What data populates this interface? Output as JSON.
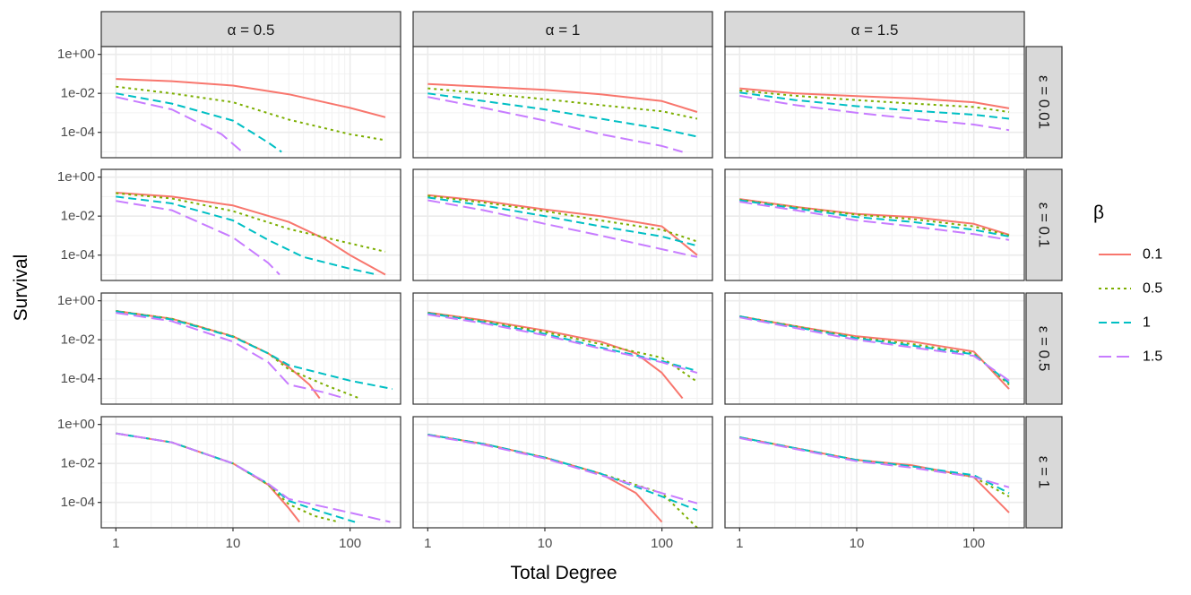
{
  "chart_data": {
    "type": "line",
    "xlabel": "Total Degree",
    "ylabel": "Survival",
    "x_scale": "log10",
    "y_scale": "log10",
    "xlim": [
      0.75,
      270
    ],
    "ylim": [
      5e-06,
      2.5
    ],
    "x_ticks": [
      {
        "value": 1,
        "label": "1"
      },
      {
        "value": 10,
        "label": "10"
      },
      {
        "value": 100,
        "label": "100"
      }
    ],
    "y_ticks": [
      {
        "value": 1,
        "label": "1e+00"
      },
      {
        "value": 0.01,
        "label": "1e-02"
      },
      {
        "value": 0.0001,
        "label": "1e-04"
      }
    ],
    "column_strips": [
      "α = 0.5",
      "α = 1",
      "α = 1.5"
    ],
    "row_strips": [
      "ε = 0.01",
      "ε = 0.1",
      "ε = 0.5",
      "ε = 1"
    ],
    "legend": {
      "title": "β",
      "position": "right",
      "entries": [
        {
          "label": "0.1",
          "color": "#F8766D",
          "dash": "solid"
        },
        {
          "label": "0.5",
          "color": "#7CAE00",
          "dash": "dotted"
        },
        {
          "label": "1",
          "color": "#00BFC4",
          "dash": "dashed"
        },
        {
          "label": "1.5",
          "color": "#C77CFF",
          "dash": "longdash"
        }
      ]
    },
    "panels": [
      {
        "row": 0,
        "col": 0,
        "series": [
          {
            "beta": "0.1",
            "x": [
              1,
              3,
              10,
              30,
              100,
              200
            ],
            "y": [
              0.055,
              0.042,
              0.025,
              0.009,
              0.0018,
              0.0006
            ]
          },
          {
            "beta": "0.5",
            "x": [
              1,
              3,
              10,
              30,
              100,
              200
            ],
            "y": [
              0.022,
              0.01,
              0.0035,
              0.00045,
              8e-05,
              4e-05
            ]
          },
          {
            "beta": "1",
            "x": [
              1,
              3,
              10,
              20,
              26
            ],
            "y": [
              0.01,
              0.003,
              0.0004,
              3e-05,
              1e-05
            ]
          },
          {
            "beta": "1.5",
            "x": [
              1,
              3,
              8,
              12
            ],
            "y": [
              0.0065,
              0.0015,
              8e-05,
              1e-05
            ]
          }
        ]
      },
      {
        "row": 0,
        "col": 1,
        "series": [
          {
            "beta": "0.1",
            "x": [
              1,
              3,
              10,
              30,
              100,
              200
            ],
            "y": [
              0.03,
              0.022,
              0.015,
              0.009,
              0.004,
              0.0011
            ]
          },
          {
            "beta": "0.5",
            "x": [
              1,
              3,
              10,
              30,
              100,
              200
            ],
            "y": [
              0.018,
              0.01,
              0.005,
              0.0025,
              0.0012,
              0.0005
            ]
          },
          {
            "beta": "1",
            "x": [
              1,
              3,
              10,
              30,
              100,
              200
            ],
            "y": [
              0.01,
              0.004,
              0.0015,
              0.0005,
              0.00015,
              6e-05
            ]
          },
          {
            "beta": "1.5",
            "x": [
              1,
              3,
              10,
              30,
              100,
              150
            ],
            "y": [
              0.0065,
              0.0018,
              0.0004,
              8e-05,
              2e-05,
              1e-05
            ]
          }
        ]
      },
      {
        "row": 0,
        "col": 2,
        "series": [
          {
            "beta": "0.1",
            "x": [
              1,
              3,
              10,
              30,
              100,
              200
            ],
            "y": [
              0.018,
              0.01,
              0.0072,
              0.0055,
              0.0035,
              0.0017
            ]
          },
          {
            "beta": "0.5",
            "x": [
              1,
              3,
              10,
              30,
              100,
              200
            ],
            "y": [
              0.014,
              0.0075,
              0.0045,
              0.003,
              0.002,
              0.0011
            ]
          },
          {
            "beta": "1",
            "x": [
              1,
              3,
              10,
              30,
              100,
              200
            ],
            "y": [
              0.011,
              0.0045,
              0.0022,
              0.0013,
              0.0008,
              0.0005
            ]
          },
          {
            "beta": "1.5",
            "x": [
              1,
              3,
              10,
              30,
              100,
              200
            ],
            "y": [
              0.0075,
              0.0025,
              0.001,
              0.0005,
              0.00025,
              0.00013
            ]
          }
        ]
      },
      {
        "row": 1,
        "col": 0,
        "series": [
          {
            "beta": "0.1",
            "x": [
              1,
              3,
              10,
              30,
              60,
              100,
              200
            ],
            "y": [
              0.16,
              0.1,
              0.035,
              0.005,
              0.0007,
              0.0001,
              1e-05
            ]
          },
          {
            "beta": "0.5",
            "x": [
              1,
              3,
              10,
              30,
              100,
              200
            ],
            "y": [
              0.15,
              0.08,
              0.018,
              0.0022,
              0.0004,
              0.00015
            ]
          },
          {
            "beta": "1",
            "x": [
              1,
              3,
              10,
              20,
              40,
              100,
              170
            ],
            "y": [
              0.1,
              0.045,
              0.006,
              0.0006,
              8e-05,
              2e-05,
              1e-05
            ]
          },
          {
            "beta": "1.5",
            "x": [
              1,
              3,
              10,
              20,
              25
            ],
            "y": [
              0.06,
              0.02,
              0.0008,
              4e-05,
              1e-05
            ]
          }
        ]
      },
      {
        "row": 1,
        "col": 1,
        "series": [
          {
            "beta": "0.1",
            "x": [
              1,
              3,
              10,
              30,
              100,
              200
            ],
            "y": [
              0.12,
              0.06,
              0.022,
              0.01,
              0.003,
              0.0001
            ]
          },
          {
            "beta": "0.5",
            "x": [
              1,
              3,
              10,
              30,
              100,
              200
            ],
            "y": [
              0.11,
              0.05,
              0.018,
              0.006,
              0.002,
              0.0005
            ]
          },
          {
            "beta": "1",
            "x": [
              1,
              3,
              10,
              30,
              100,
              200
            ],
            "y": [
              0.09,
              0.035,
              0.01,
              0.003,
              0.0009,
              0.0003
            ]
          },
          {
            "beta": "1.5",
            "x": [
              1,
              3,
              10,
              30,
              100,
              200
            ],
            "y": [
              0.065,
              0.02,
              0.004,
              0.001,
              0.0002,
              8e-05
            ]
          }
        ]
      },
      {
        "row": 1,
        "col": 2,
        "series": [
          {
            "beta": "0.1",
            "x": [
              1,
              3,
              10,
              30,
              100,
              200
            ],
            "y": [
              0.075,
              0.03,
              0.013,
              0.009,
              0.004,
              0.0011
            ]
          },
          {
            "beta": "0.5",
            "x": [
              1,
              3,
              10,
              30,
              100,
              200
            ],
            "y": [
              0.07,
              0.028,
              0.012,
              0.007,
              0.003,
              0.001
            ]
          },
          {
            "beta": "1",
            "x": [
              1,
              3,
              10,
              30,
              100,
              200
            ],
            "y": [
              0.065,
              0.025,
              0.009,
              0.005,
              0.002,
              0.0009
            ]
          },
          {
            "beta": "1.5",
            "x": [
              1,
              3,
              10,
              30,
              100,
              200
            ],
            "y": [
              0.055,
              0.02,
              0.006,
              0.003,
              0.0012,
              0.0006
            ]
          }
        ]
      },
      {
        "row": 2,
        "col": 0,
        "series": [
          {
            "beta": "0.1",
            "x": [
              1,
              3,
              10,
              20,
              30,
              45,
              55
            ],
            "y": [
              0.3,
              0.12,
              0.015,
              0.002,
              0.0004,
              5e-05,
              1e-05
            ]
          },
          {
            "beta": "0.5",
            "x": [
              1,
              3,
              10,
              20,
              30,
              60,
              120
            ],
            "y": [
              0.3,
              0.12,
              0.015,
              0.002,
              0.0003,
              5e-05,
              1e-05
            ]
          },
          {
            "beta": "1",
            "x": [
              1,
              3,
              10,
              20,
              30,
              100,
              230
            ],
            "y": [
              0.29,
              0.11,
              0.014,
              0.002,
              0.0005,
              8e-05,
              3e-05
            ]
          },
          {
            "beta": "1.5",
            "x": [
              1,
              3,
              10,
              20,
              30,
              60,
              90
            ],
            "y": [
              0.24,
              0.09,
              0.008,
              0.0007,
              5e-05,
              2e-05,
              1e-05
            ]
          }
        ]
      },
      {
        "row": 2,
        "col": 1,
        "series": [
          {
            "beta": "0.1",
            "x": [
              1,
              3,
              10,
              30,
              60,
              100,
              150
            ],
            "y": [
              0.25,
              0.1,
              0.03,
              0.008,
              0.002,
              0.0002,
              1e-05
            ]
          },
          {
            "beta": "0.5",
            "x": [
              1,
              3,
              10,
              30,
              100,
              200
            ],
            "y": [
              0.24,
              0.09,
              0.025,
              0.006,
              0.0012,
              7e-05
            ]
          },
          {
            "beta": "1",
            "x": [
              1,
              3,
              10,
              30,
              100,
              200
            ],
            "y": [
              0.23,
              0.08,
              0.02,
              0.004,
              0.0008,
              0.00025
            ]
          },
          {
            "beta": "1.5",
            "x": [
              1,
              3,
              10,
              30,
              100,
              200
            ],
            "y": [
              0.2,
              0.07,
              0.017,
              0.0035,
              0.0007,
              0.0002
            ]
          }
        ]
      },
      {
        "row": 2,
        "col": 2,
        "series": [
          {
            "beta": "0.1",
            "x": [
              1,
              3,
              10,
              30,
              100,
              200
            ],
            "y": [
              0.16,
              0.05,
              0.015,
              0.008,
              0.0025,
              3e-05
            ]
          },
          {
            "beta": "0.5",
            "x": [
              1,
              3,
              10,
              30,
              100,
              200
            ],
            "y": [
              0.16,
              0.05,
              0.013,
              0.006,
              0.002,
              5e-05
            ]
          },
          {
            "beta": "1",
            "x": [
              1,
              3,
              10,
              30,
              100,
              200
            ],
            "y": [
              0.16,
              0.045,
              0.012,
              0.005,
              0.0018,
              6e-05
            ]
          },
          {
            "beta": "1.5",
            "x": [
              1,
              3,
              10,
              30,
              100,
              200
            ],
            "y": [
              0.14,
              0.04,
              0.01,
              0.004,
              0.0015,
              8e-05
            ]
          }
        ]
      },
      {
        "row": 3,
        "col": 0,
        "series": [
          {
            "beta": "0.1",
            "x": [
              1,
              3,
              10,
              20,
              30,
              37
            ],
            "y": [
              0.35,
              0.12,
              0.01,
              0.0008,
              5e-05,
              1e-05
            ]
          },
          {
            "beta": "0.5",
            "x": [
              1,
              3,
              10,
              20,
              30,
              50,
              80
            ],
            "y": [
              0.35,
              0.12,
              0.01,
              0.0008,
              8e-05,
              2e-05,
              1e-05
            ]
          },
          {
            "beta": "1",
            "x": [
              1,
              3,
              10,
              20,
              30,
              60,
              110
            ],
            "y": [
              0.35,
              0.12,
              0.01,
              0.0009,
              0.00012,
              3e-05,
              1e-05
            ]
          },
          {
            "beta": "1.5",
            "x": [
              1,
              3,
              10,
              20,
              30,
              100,
              220
            ],
            "y": [
              0.35,
              0.12,
              0.01,
              0.0009,
              0.00015,
              3e-05,
              1e-05
            ]
          }
        ]
      },
      {
        "row": 3,
        "col": 1,
        "series": [
          {
            "beta": "0.1",
            "x": [
              1,
              3,
              10,
              30,
              60,
              100
            ],
            "y": [
              0.3,
              0.1,
              0.02,
              0.003,
              0.0003,
              1e-05
            ]
          },
          {
            "beta": "0.5",
            "x": [
              1,
              3,
              10,
              30,
              100,
              200
            ],
            "y": [
              0.3,
              0.1,
              0.02,
              0.003,
              0.0003,
              5e-06
            ]
          },
          {
            "beta": "1",
            "x": [
              1,
              3,
              10,
              30,
              100,
              200
            ],
            "y": [
              0.3,
              0.1,
              0.02,
              0.003,
              0.0002,
              4e-05
            ]
          },
          {
            "beta": "1.5",
            "x": [
              1,
              3,
              10,
              30,
              100,
              200
            ],
            "y": [
              0.28,
              0.09,
              0.018,
              0.0025,
              0.0003,
              9e-05
            ]
          }
        ]
      },
      {
        "row": 3,
        "col": 2,
        "series": [
          {
            "beta": "0.1",
            "x": [
              1,
              3,
              10,
              30,
              100,
              200
            ],
            "y": [
              0.22,
              0.06,
              0.015,
              0.008,
              0.002,
              3e-05
            ]
          },
          {
            "beta": "0.5",
            "x": [
              1,
              3,
              10,
              30,
              100,
              200
            ],
            "y": [
              0.22,
              0.06,
              0.015,
              0.007,
              0.002,
              0.0002
            ]
          },
          {
            "beta": "1",
            "x": [
              1,
              3,
              10,
              30,
              100,
              200
            ],
            "y": [
              0.22,
              0.06,
              0.015,
              0.007,
              0.0025,
              0.0003
            ]
          },
          {
            "beta": "1.5",
            "x": [
              1,
              3,
              10,
              30,
              100,
              200
            ],
            "y": [
              0.2,
              0.055,
              0.013,
              0.006,
              0.002,
              0.0006
            ]
          }
        ]
      }
    ]
  }
}
